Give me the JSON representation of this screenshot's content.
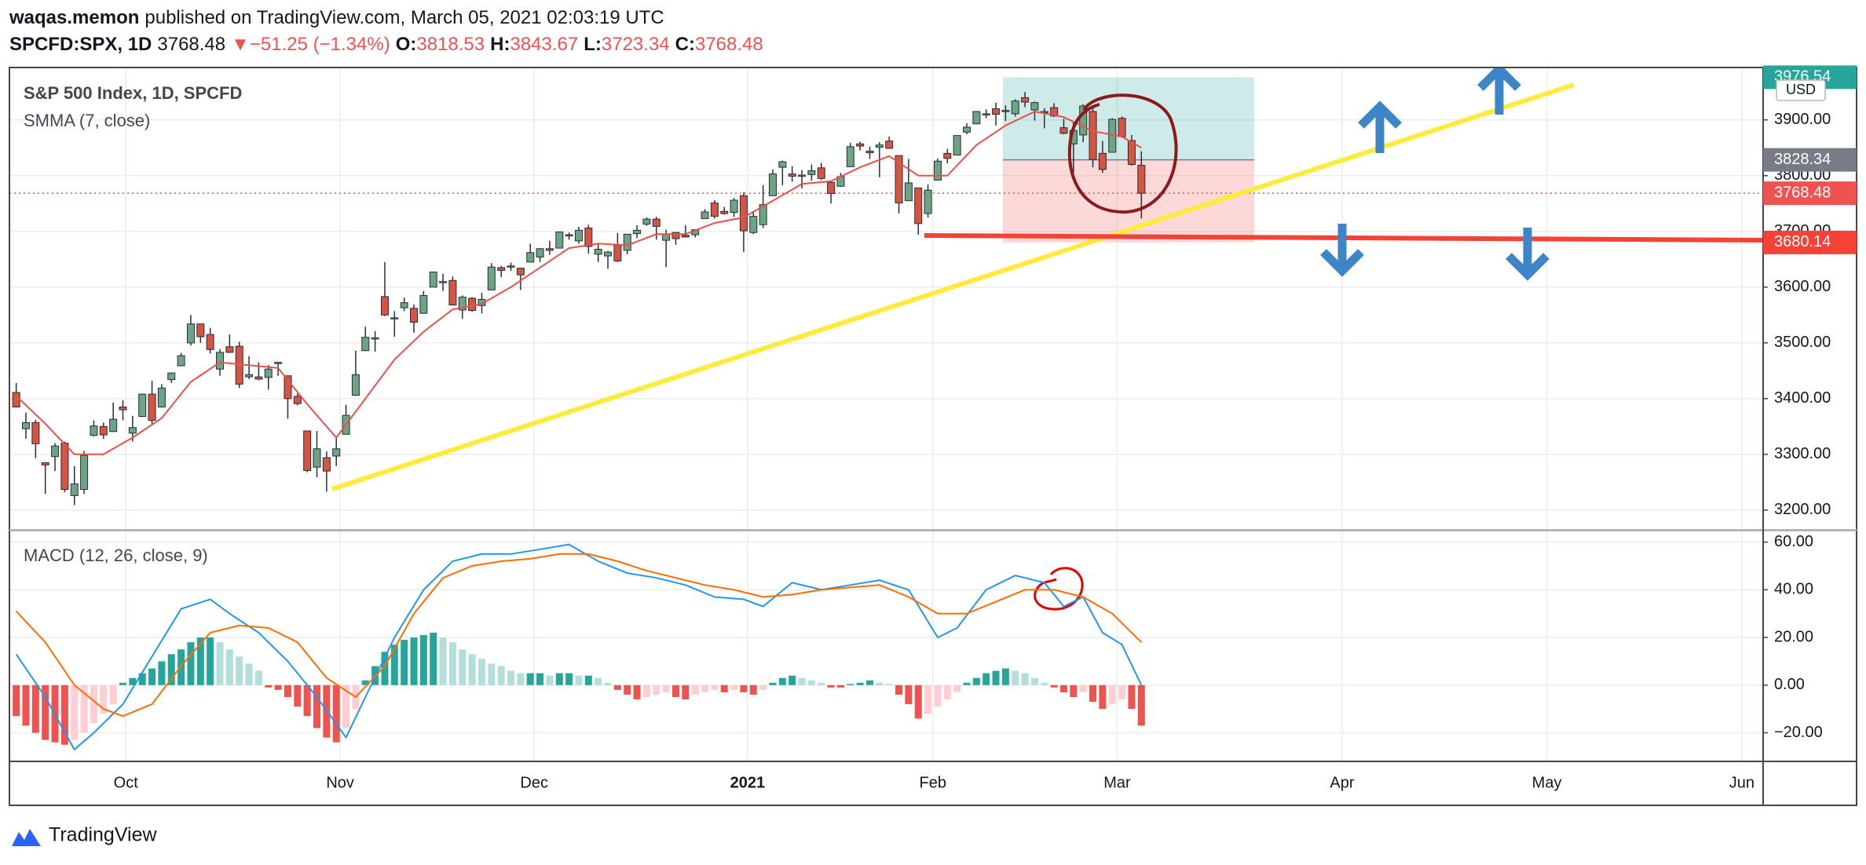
{
  "header": {
    "author": "waqas.memon",
    "published": "published on TradingView.com, March 05, 2021 02:03:19 UTC",
    "symbol": "SPCFD:SPX, 1D",
    "last": "3768.48",
    "arrow": "▼",
    "change": "−51.25 (−1.34%)",
    "ohlc": [
      {
        "k": "O:",
        "v": "3818.53"
      },
      {
        "k": "H:",
        "v": "3843.67"
      },
      {
        "k": "L:",
        "v": "3723.34"
      },
      {
        "k": "C:",
        "v": "3768.48"
      }
    ]
  },
  "footer": {
    "brand": "TradingView"
  },
  "chart_data": [
    {
      "type": "candlestick",
      "title": "S&P 500 Index, 1D, SPCFD",
      "currency": "USD",
      "up_color": "#6ba583",
      "down_color": "#d75442",
      "x": [
        0,
        1,
        2,
        3,
        4,
        5,
        6,
        7,
        8,
        9,
        10,
        11,
        12,
        13,
        14,
        15,
        16,
        17,
        18,
        19,
        20,
        21,
        22,
        23,
        24,
        25,
        26,
        27,
        28,
        29,
        30,
        31,
        32,
        33,
        34,
        35,
        36,
        37,
        38,
        39,
        40,
        41,
        42,
        43,
        44,
        45,
        46,
        47,
        48,
        49,
        50,
        51,
        52,
        53,
        54,
        55,
        56,
        57,
        58,
        59,
        60,
        61,
        62,
        63,
        64,
        65,
        66,
        67,
        68,
        69,
        70,
        71,
        72,
        73,
        74,
        75,
        76,
        77,
        78,
        79,
        80,
        81,
        82,
        83,
        84,
        85,
        86,
        87,
        88,
        89,
        90,
        91,
        92,
        93,
        94,
        95,
        96,
        97,
        98,
        99,
        100,
        101,
        102,
        103,
        104,
        105,
        106,
        107,
        108,
        109,
        110,
        111,
        112,
        113,
        114,
        115,
        116
      ],
      "open": [
        3411,
        3346,
        3357,
        3285,
        3296,
        3320,
        3226,
        3237,
        3334,
        3350,
        3341,
        3385,
        3338,
        3368,
        3408,
        3385,
        3434,
        3459,
        3500,
        3534,
        3515,
        3453,
        3493,
        3494,
        3439,
        3439,
        3438,
        3464,
        3441,
        3404,
        3342,
        3277,
        3294,
        3297,
        3336,
        3406,
        3486,
        3508,
        3583,
        3543,
        3563,
        3562,
        3553,
        3600,
        3610,
        3612,
        3559,
        3580,
        3567,
        3595,
        3635,
        3638,
        3634,
        3645,
        3654,
        3669,
        3670,
        3694,
        3683,
        3706,
        3659,
        3656,
        3675,
        3666,
        3696,
        3713,
        3722,
        3684,
        3698,
        3693,
        3694,
        3723,
        3751,
        3736,
        3734,
        3764,
        3698,
        3712,
        3764,
        3815,
        3803,
        3801,
        3802,
        3814,
        3788,
        3781,
        3816,
        3857,
        3844,
        3851,
        3862,
        3836,
        3755,
        3778,
        3732,
        3792,
        3840,
        3837,
        3878,
        3893,
        3910,
        3920,
        3917,
        3911,
        3940,
        3918,
        3915,
        3922,
        3886,
        3857,
        3873,
        3915,
        3840,
        3842,
        3903,
        3863,
        3818.53
      ],
      "high": [
        3428,
        3375,
        3362,
        3286,
        3320,
        3323,
        3279,
        3306,
        3361,
        3357,
        3393,
        3397,
        3369,
        3409,
        3432,
        3426,
        3447,
        3482,
        3550,
        3534,
        3527,
        3489,
        3515,
        3502,
        3476,
        3465,
        3460,
        3466,
        3441,
        3409,
        3342,
        3342,
        3305,
        3330,
        3389,
        3486,
        3529,
        3521,
        3645,
        3557,
        3581,
        3569,
        3593,
        3628,
        3624,
        3619,
        3585,
        3582,
        3590,
        3643,
        3638,
        3644,
        3634,
        3678,
        3670,
        3683,
        3699,
        3698,
        3708,
        3712,
        3678,
        3665,
        3697,
        3695,
        3711,
        3725,
        3726,
        3703,
        3698,
        3711,
        3703,
        3740,
        3756,
        3744,
        3760,
        3770,
        3737,
        3783,
        3811,
        3827,
        3817,
        3810,
        3820,
        3823,
        3788,
        3805,
        3859,
        3861,
        3852,
        3860,
        3870,
        3836,
        3830,
        3778,
        3784,
        3831,
        3848,
        3872,
        3894,
        3916,
        3919,
        3931,
        3926,
        3937,
        3950,
        3933,
        3921,
        3930,
        3902,
        3896,
        3928,
        3925,
        3862,
        3903,
        3906,
        3873,
        3843.67
      ],
      "low": [
        3384,
        3328,
        3293,
        3229,
        3270,
        3232,
        3209,
        3229,
        3332,
        3328,
        3340,
        3361,
        3323,
        3367,
        3354,
        3384,
        3428,
        3458,
        3495,
        3500,
        3481,
        3441,
        3482,
        3419,
        3435,
        3433,
        3416,
        3441,
        3364,
        3388,
        3268,
        3259,
        3233,
        3279,
        3336,
        3405,
        3486,
        3484,
        3548,
        3511,
        3557,
        3518,
        3552,
        3600,
        3593,
        3567,
        3543,
        3556,
        3553,
        3595,
        3618,
        3629,
        3595,
        3645,
        3645,
        3658,
        3670,
        3685,
        3678,
        3660,
        3645,
        3633,
        3645,
        3659,
        3688,
        3710,
        3685,
        3636,
        3676,
        3689,
        3689,
        3723,
        3723,
        3730,
        3726,
        3663,
        3695,
        3706,
        3764,
        3783,
        3789,
        3777,
        3791,
        3792,
        3750,
        3780,
        3816,
        3845,
        3830,
        3797,
        3848,
        3732,
        3755,
        3694,
        3725,
        3792,
        3822,
        3836,
        3874,
        3892,
        3903,
        3890,
        3898,
        3906,
        3923,
        3899,
        3885,
        3905,
        3874,
        3805,
        3860,
        3815,
        3805,
        3842,
        3868,
        3818,
        3723.34
      ],
      "close": [
        3385,
        3357,
        3319,
        3281,
        3315,
        3237,
        3247,
        3298,
        3351,
        3335,
        3363,
        3380,
        3348,
        3408,
        3361,
        3419,
        3446,
        3477,
        3534,
        3511,
        3488,
        3483,
        3483,
        3426,
        3443,
        3435,
        3453,
        3465,
        3400,
        3391,
        3271,
        3310,
        3270,
        3310,
        3370,
        3443,
        3510,
        3509,
        3550,
        3545,
        3572,
        3537,
        3585,
        3627,
        3610,
        3568,
        3582,
        3558,
        3578,
        3636,
        3630,
        3638,
        3622,
        3662,
        3669,
        3666,
        3699,
        3692,
        3702,
        3673,
        3668,
        3663,
        3647,
        3695,
        3702,
        3722,
        3709,
        3695,
        3687,
        3690,
        3703,
        3735,
        3727,
        3732,
        3756,
        3701,
        3727,
        3748,
        3803,
        3825,
        3799,
        3801,
        3809,
        3795,
        3768,
        3798,
        3852,
        3853,
        3841,
        3855,
        3849,
        3751,
        3787,
        3714,
        3774,
        3826,
        3831,
        3872,
        3887,
        3915,
        3911,
        3910,
        3916,
        3934,
        3932,
        3931,
        3913,
        3907,
        3876,
        3881,
        3925,
        3829,
        3811,
        3901,
        3870,
        3820,
        3768.48
      ],
      "overlay": {
        "name": "SMMA (7, close)",
        "color": "#e8514a",
        "x": [
          0,
          3,
          6,
          9,
          12,
          15,
          18,
          21,
          24,
          27,
          30,
          33,
          36,
          39,
          42,
          45,
          48,
          51,
          54,
          57,
          60,
          63,
          66,
          69,
          72,
          75,
          78,
          81,
          84,
          87,
          90,
          93,
          96,
          99,
          102,
          105,
          108,
          111,
          114,
          116
        ],
        "values": [
          3405,
          3355,
          3300,
          3300,
          3330,
          3365,
          3430,
          3465,
          3460,
          3455,
          3390,
          3330,
          3400,
          3470,
          3520,
          3560,
          3570,
          3600,
          3635,
          3670,
          3678,
          3675,
          3695,
          3695,
          3715,
          3725,
          3755,
          3785,
          3790,
          3815,
          3835,
          3800,
          3800,
          3855,
          3890,
          3915,
          3905,
          3880,
          3870,
          3850
        ]
      },
      "position": {
        "target": 3976.54,
        "entry": 3828.34,
        "stop": 3680.14
      },
      "last_price": 3768.48,
      "ylim": [
        3166,
        3994
      ],
      "yticks": [
        {
          "value": 3200,
          "label": "3200.00"
        },
        {
          "value": 3300,
          "label": "3300.00"
        },
        {
          "value": 3400,
          "label": "3400.00"
        },
        {
          "value": 3500,
          "label": "3500.00"
        },
        {
          "value": 3600,
          "label": "3600.00"
        },
        {
          "value": 3700,
          "label": "3700.00"
        },
        {
          "value": 3800,
          "label": "3800.00"
        },
        {
          "value": 3900,
          "label": "3900.00"
        }
      ],
      "xlim": [
        -0.7,
        180.1
      ],
      "xticks": [
        {
          "value": 11.3,
          "label": "Oct"
        },
        {
          "value": 33.4,
          "label": "Nov"
        },
        {
          "value": 53.4,
          "label": "Dec"
        },
        {
          "value": 75.4,
          "label": "2021"
        },
        {
          "value": 94.5,
          "label": "Feb"
        },
        {
          "value": 113.5,
          "label": "Mar"
        },
        {
          "value": 136.7,
          "label": "Apr"
        },
        {
          "value": 157.8,
          "label": "May"
        },
        {
          "value": 177.9,
          "label": "Jun"
        }
      ],
      "grid": true
    },
    {
      "type": "macd",
      "title": "MACD (12, 26, close, 9)",
      "histogram": {
        "colors": {
          "up_strong": "#26a69a",
          "up_weak": "#b2dfdb",
          "down_strong": "#ef5350",
          "down_weak": "#ffcdd2"
        },
        "values": [
          -13,
          -17,
          -20,
          -23,
          -24,
          -25,
          -23,
          -20,
          -16,
          -12,
          -8,
          1,
          3,
          5,
          7,
          10,
          13,
          15,
          18,
          20,
          20,
          18,
          15,
          12,
          9,
          6,
          -1,
          -2,
          -5,
          -9,
          -13,
          -18,
          -22,
          -24,
          -18,
          -10,
          2,
          8,
          14,
          17,
          19,
          20,
          21,
          22,
          20,
          18,
          15,
          13,
          11,
          9,
          8,
          6,
          5,
          5,
          5,
          4,
          5,
          5,
          4,
          4,
          3,
          1,
          -2,
          -4,
          -6,
          -5,
          -4,
          -3,
          -5,
          -6,
          -4,
          -3,
          -2,
          -3,
          -2,
          -3,
          -4,
          -2,
          1,
          3,
          4,
          3,
          2,
          1,
          -1,
          -1,
          0.5,
          1,
          2,
          1,
          0.5,
          -4,
          -8,
          -14,
          -12,
          -9,
          -6,
          -3,
          1,
          3,
          5,
          6,
          7,
          6,
          5,
          3,
          1,
          -1,
          -3,
          -5,
          -3,
          -7,
          -10,
          -8,
          -6,
          -10,
          -17
        ]
      },
      "series": [
        {
          "color": "#2196f3",
          "x": [
            0,
            3,
            6,
            8,
            11,
            14,
            17,
            20,
            22,
            25,
            28,
            31,
            34,
            36,
            39,
            42,
            45,
            48,
            51,
            54,
            57,
            60,
            63,
            66,
            69,
            72,
            75,
            77,
            80,
            83,
            86,
            89,
            92,
            95,
            97,
            100,
            103,
            106,
            108,
            110,
            112,
            114,
            116
          ],
          "values": [
            13,
            -5,
            -27,
            -20,
            -8,
            12,
            32,
            36,
            30,
            22,
            10,
            -5,
            -22,
            -5,
            20,
            40,
            52,
            55,
            55,
            57,
            59,
            52,
            47,
            45,
            42,
            37,
            36,
            33,
            43,
            40,
            42,
            44,
            40,
            20,
            24,
            40,
            46,
            43,
            33,
            37,
            22,
            17,
            0
          ]
        },
        {
          "color": "#ff6d00",
          "x": [
            0,
            3,
            6,
            9,
            11,
            14,
            17,
            20,
            23,
            26,
            29,
            32,
            35,
            38,
            41,
            44,
            47,
            50,
            53,
            56,
            59,
            62,
            65,
            68,
            71,
            74,
            77,
            80,
            83,
            86,
            89,
            92,
            95,
            98,
            101,
            104,
            107,
            110,
            113,
            116
          ],
          "values": [
            31,
            18,
            0,
            -10,
            -13,
            -8,
            8,
            22,
            25,
            24,
            18,
            3,
            -5,
            8,
            30,
            45,
            50,
            52,
            53,
            55,
            55,
            52,
            48,
            45,
            42,
            40,
            37,
            38,
            40,
            41,
            42,
            37,
            30,
            30,
            35,
            40,
            40,
            37,
            30,
            18
          ]
        }
      ],
      "ylim": [
        -32,
        64.5
      ],
      "yticks": [
        {
          "value": 60,
          "label": "60.00"
        },
        {
          "value": 40,
          "label": "40.00"
        },
        {
          "value": 20,
          "label": "20.00"
        },
        {
          "value": 0,
          "label": "0.00"
        },
        {
          "value": -20,
          "label": "−20.00"
        }
      ],
      "grid": true
    }
  ]
}
